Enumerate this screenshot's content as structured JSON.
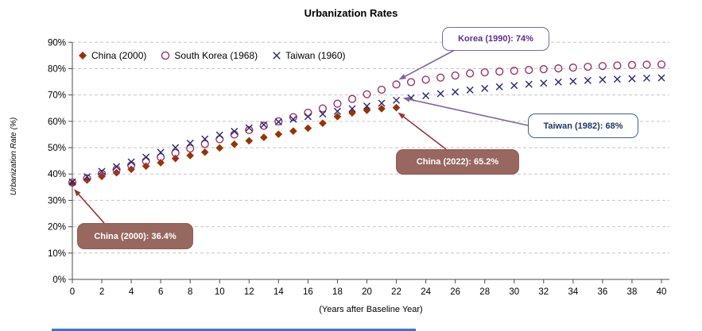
{
  "chart": {
    "title": "Urbanization Rates",
    "x_axis_title": "(Years after Baseline Year)",
    "y_axis_title": "Urbanization Rate (%)"
  },
  "legend": {
    "items": [
      {
        "label": "China (2000)",
        "marker": "filled-diamond",
        "color": "#993300"
      },
      {
        "label": "South Korea (1968)",
        "marker": "open-circle",
        "color": "#993366"
      },
      {
        "label": "Taiwan (1960)",
        "marker": "x-cross",
        "color": "#262673"
      }
    ]
  },
  "annotations": [
    {
      "text": "Korea (1990): 74%",
      "text_color": "#5F2D91",
      "border_color": "#8064A2",
      "bg": "#FFFFFF",
      "arrow_color": "#8064A2",
      "anchor_x": 22,
      "anchor_y": 74
    },
    {
      "text": "Taiwan (1982): 68%",
      "text_color": "#1F3864",
      "border_color": "#376091",
      "bg": "#FFFFFF",
      "arrow_color": "#8064A2",
      "anchor_x": 22,
      "anchor_y": 68
    },
    {
      "text": "China (2022): 65.2%",
      "text_color": "#FFFFFF",
      "border_color": "#8E5D57",
      "bg": "#976760",
      "arrow_color": "#953735",
      "anchor_x": 22,
      "anchor_y": 65.2
    },
    {
      "text": "China (2000): 36.4%",
      "text_color": "#FFFFFF",
      "border_color": "#8E5D57",
      "bg": "#976760",
      "arrow_color": "#953735",
      "anchor_x": 0,
      "anchor_y": 36.4
    }
  ],
  "chart_data": {
    "type": "scatter",
    "title": "Urbanization Rates",
    "xlabel": "(Years after Baseline Year)",
    "ylabel": "Urbanization Rate (%)",
    "xlim": [
      0,
      40
    ],
    "ylim": [
      0,
      90
    ],
    "x_ticks": [
      0,
      2,
      4,
      6,
      8,
      10,
      12,
      14,
      16,
      18,
      20,
      22,
      24,
      26,
      28,
      30,
      32,
      34,
      36,
      38,
      40
    ],
    "y_ticks": [
      0,
      10,
      20,
      30,
      40,
      50,
      60,
      70,
      80,
      90
    ],
    "y_tick_suffix": "%",
    "grid": "horizontal-dashed",
    "legend_position": "inside-top-left",
    "series": [
      {
        "name": "China (2000)",
        "marker": "filled-diamond",
        "color": "#993300",
        "x": [
          0,
          1,
          2,
          3,
          4,
          5,
          6,
          7,
          8,
          9,
          10,
          11,
          12,
          13,
          14,
          15,
          16,
          17,
          18,
          19,
          20,
          21,
          22
        ],
        "y": [
          36.4,
          37.7,
          39.1,
          40.5,
          41.8,
          43.0,
          44.3,
          45.9,
          47.0,
          48.3,
          49.9,
          51.3,
          52.6,
          53.9,
          55.1,
          56.3,
          57.4,
          59.3,
          61.8,
          63.2,
          64.2,
          64.8,
          65.2
        ]
      },
      {
        "name": "South Korea (1968)",
        "marker": "open-circle",
        "color": "#993366",
        "x": [
          0,
          1,
          2,
          3,
          4,
          5,
          6,
          7,
          8,
          9,
          10,
          11,
          12,
          13,
          14,
          15,
          16,
          17,
          18,
          19,
          20,
          21,
          22,
          23,
          24,
          25,
          26,
          27,
          28,
          29,
          30,
          31,
          32,
          33,
          34,
          35,
          36,
          37,
          38,
          39,
          40
        ],
        "y": [
          36.8,
          38.4,
          40.1,
          41.7,
          43.3,
          44.9,
          46.4,
          48.0,
          49.7,
          51.4,
          53.2,
          55.0,
          56.7,
          58.3,
          60.0,
          61.6,
          63.3,
          64.9,
          66.7,
          68.5,
          70.3,
          72.0,
          74.0,
          74.9,
          75.8,
          76.6,
          77.4,
          78.2,
          78.6,
          78.9,
          79.2,
          79.5,
          79.8,
          80.1,
          80.4,
          80.7,
          81.0,
          81.2,
          81.4,
          81.5,
          81.6
        ]
      },
      {
        "name": "Taiwan (1960)",
        "marker": "x-cross",
        "color": "#262673",
        "x": [
          0,
          1,
          2,
          3,
          4,
          5,
          6,
          7,
          8,
          9,
          10,
          11,
          12,
          13,
          14,
          15,
          16,
          17,
          18,
          19,
          20,
          21,
          22,
          23,
          24,
          25,
          26,
          27,
          28,
          29,
          30,
          31,
          32,
          33,
          34,
          35,
          36,
          37,
          38,
          39,
          40
        ],
        "y": [
          37.0,
          39.0,
          41.0,
          42.8,
          44.6,
          46.4,
          48.2,
          50.0,
          51.7,
          53.3,
          54.8,
          56.2,
          57.5,
          58.7,
          59.8,
          60.8,
          61.8,
          62.8,
          63.8,
          64.8,
          65.8,
          66.9,
          68.0,
          68.9,
          69.7,
          70.5,
          71.2,
          71.9,
          72.5,
          73.1,
          73.6,
          74.1,
          74.5,
          74.9,
          75.2,
          75.5,
          75.8,
          76.0,
          76.2,
          76.4,
          76.5
        ]
      }
    ],
    "callouts": [
      {
        "text": "Korea (1990): 74%",
        "series": "South Korea (1968)",
        "x": 22,
        "y": 74
      },
      {
        "text": "Taiwan (1982): 68%",
        "series": "Taiwan (1960)",
        "x": 22,
        "y": 68
      },
      {
        "text": "China (2022): 65.2%",
        "series": "China (2000)",
        "x": 22,
        "y": 65.2
      },
      {
        "text": "China (2000): 36.4%",
        "series": "China (2000)",
        "x": 0,
        "y": 36.4
      }
    ]
  },
  "colors": {
    "gridline": "#C6C6C6",
    "axis": "#4D4D4D",
    "text": "#000000",
    "bottom_strip": "#4472C4"
  }
}
